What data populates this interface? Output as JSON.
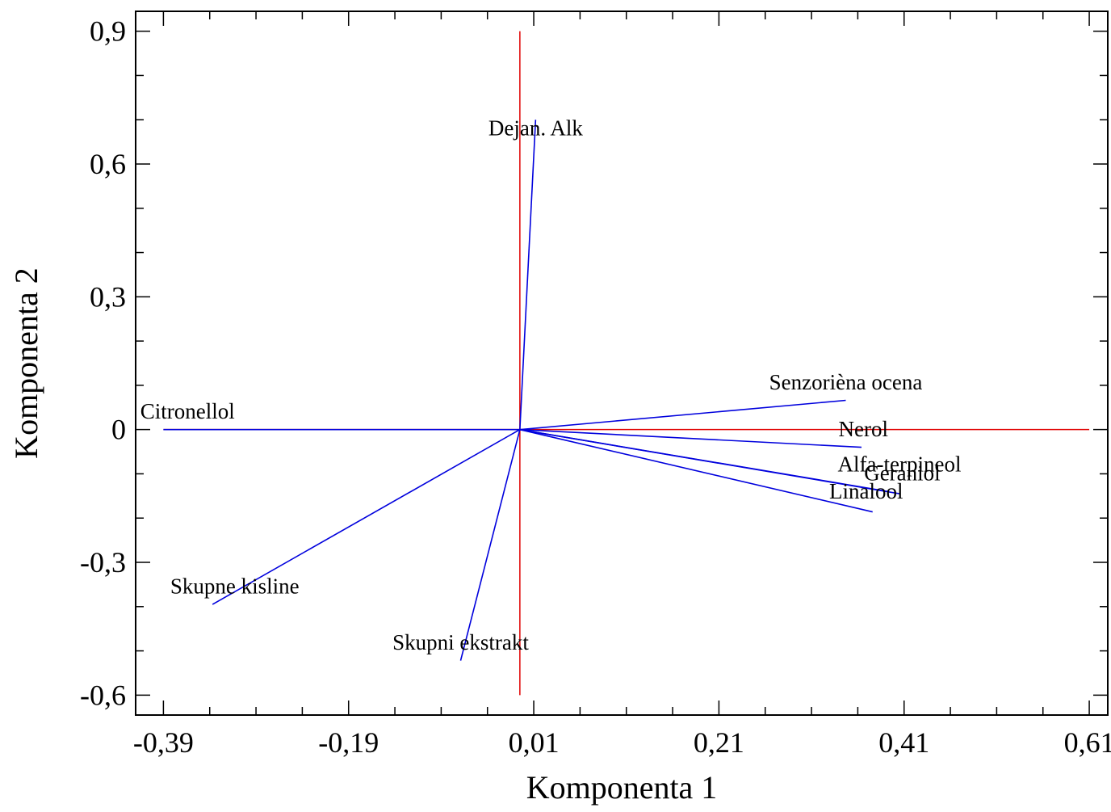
{
  "chart_data": {
    "type": "biplot",
    "xlabel": "Komponenta 1",
    "ylabel": "Komponenta 2",
    "xlim": [
      -0.42,
      0.63
    ],
    "ylim": [
      -0.645,
      0.945
    ],
    "x_ticks": [
      {
        "value": -0.39,
        "label": "-0,39"
      },
      {
        "value": -0.19,
        "label": "-0,19"
      },
      {
        "value": 0.01,
        "label": "0,01"
      },
      {
        "value": 0.21,
        "label": "0,21"
      },
      {
        "value": 0.41,
        "label": "0,41"
      },
      {
        "value": 0.61,
        "label": "0,61"
      }
    ],
    "y_ticks": [
      {
        "value": -0.6,
        "label": "-0,6"
      },
      {
        "value": -0.3,
        "label": "-0,3"
      },
      {
        "value": 0,
        "label": "0"
      },
      {
        "value": 0.3,
        "label": "0,3"
      },
      {
        "value": 0.6,
        "label": "0,6"
      },
      {
        "value": 0.9,
        "label": "0,9"
      }
    ],
    "x_minor_step": 0.05,
    "y_minor_step": 0.1,
    "reference_lines": {
      "color": "#e00000",
      "horizontal": {
        "y": 0,
        "x_from": -0.39,
        "x_to": 0.61
      },
      "vertical": {
        "x": -0.005,
        "y_from": -0.6,
        "y_to": 0.9
      }
    },
    "vector_color": "#0000dd",
    "origin": [
      -0.005,
      0
    ],
    "vectors": [
      {
        "label": "Dejan. Alk",
        "x": 0.012,
        "y": 0.7,
        "label_anchor": "middle",
        "label_dx": 0,
        "label_dy": -0.035
      },
      {
        "label": "Senzorièna ocena",
        "x": 0.347,
        "y": 0.066,
        "label_anchor": "middle",
        "label_dx": 0,
        "label_dy": 0.025
      },
      {
        "label": "Nerol",
        "x": 0.364,
        "y": -0.04,
        "label_anchor": "middle",
        "label_dx": 0.002,
        "label_dy": 0.025
      },
      {
        "label": "Alfa-terpineol",
        "x": 0.393,
        "y": -0.14,
        "label_anchor": "middle",
        "label_dx": 0.012,
        "label_dy": 0.045
      },
      {
        "label": "Geraniol",
        "x": 0.405,
        "y": -0.145,
        "label_anchor": "middle",
        "label_dx": 0.003,
        "label_dy": 0.03
      },
      {
        "label": "Linalool",
        "x": 0.376,
        "y": -0.186,
        "label_anchor": "middle",
        "label_dx": -0.007,
        "label_dy": 0.03
      },
      {
        "label": "Citronellol",
        "x": -0.39,
        "y": 0.0,
        "label_anchor": "middle",
        "label_dx": 0.026,
        "label_dy": 0.025
      },
      {
        "label": "Skupne kisline",
        "x": -0.337,
        "y": -0.395,
        "label_anchor": "middle",
        "label_dx": 0.024,
        "label_dy": 0.025
      },
      {
        "label": "Skupni ekstrakt",
        "x": -0.069,
        "y": -0.522,
        "label_anchor": "middle",
        "label_dx": 0.0,
        "label_dy": 0.025
      }
    ]
  }
}
